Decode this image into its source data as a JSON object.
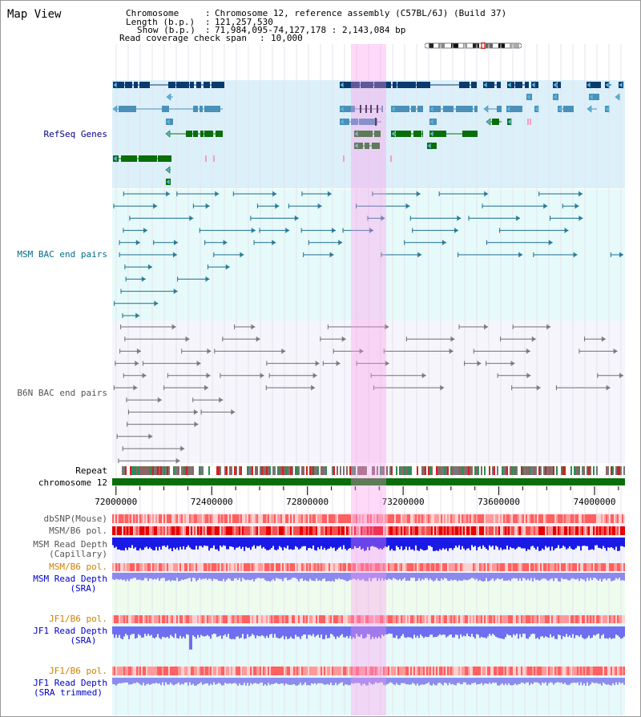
{
  "view_title": "Map View",
  "header": {
    "chromosome_label": "Chromosome",
    "chromosome_value": "Chromosome 12, reference assembly (C57BL/6J) (Build 37)",
    "length_label": "Length (b.p.)",
    "length_value": "121,257,530",
    "show_label": "Show (b.p.)",
    "show_value": "71,984,095-74,127,178 : 2,143,084 bp",
    "coverage_label": "Read coverage check span",
    "coverage_value": "10,000"
  },
  "tracks": {
    "refseq": "RefSeq Genes",
    "msm_bac": "MSM BAC end pairs",
    "b6n_bac": "B6N BAC end pairs",
    "repeat": "Repeat",
    "chromosome": "chromosome 12",
    "dbsnp": "dbSNP(Mouse)",
    "msm_b6_pol": "MSM/B6 pol.",
    "msm_depth_cap_1": "MSM Read Depth",
    "msm_depth_cap_2": "(Capillary)",
    "msm_b6_pol_sra": "MSM/B6 pol.",
    "msm_depth_sra_1": "MSM Read Depth",
    "msm_depth_sra_2": "(SRA)",
    "jf1_b6_pol_1": "JF1/B6 pol.",
    "jf1_depth_sra_1": "JF1 Read Depth",
    "jf1_depth_sra_2": "(SRA)",
    "jf1_b6_pol_2": "JF1/B6 pol.",
    "jf1_depth_trim_1": "JF1 Read Depth",
    "jf1_depth_trim_2": "(SRA trimmed)"
  },
  "axis": {
    "ticks": [
      "72000000",
      "72400000",
      "72800000",
      "73200000",
      "73600000",
      "74000000"
    ],
    "tick_values": [
      72000000,
      72400000,
      72800000,
      73200000,
      73600000,
      74000000
    ],
    "range": [
      71984095,
      74127178
    ]
  },
  "colors": {
    "refseq_bg": "#dcf0fa",
    "bac_bg": "#e6fafa",
    "b6n_bg": "#f5f5fb",
    "highlight": "#ff96eb",
    "gene_dark": "#0a3a6e",
    "gene_mid": "#4a90b8",
    "gene_green": "#0a6e0a",
    "msm_pair": "#1a6e8c",
    "b6n_pair": "#707070",
    "label_navy": "#00008b",
    "label_teal": "#006e8c",
    "label_gray": "#555555",
    "label_orange": "#d08000",
    "label_blue": "#0000cc"
  }
}
